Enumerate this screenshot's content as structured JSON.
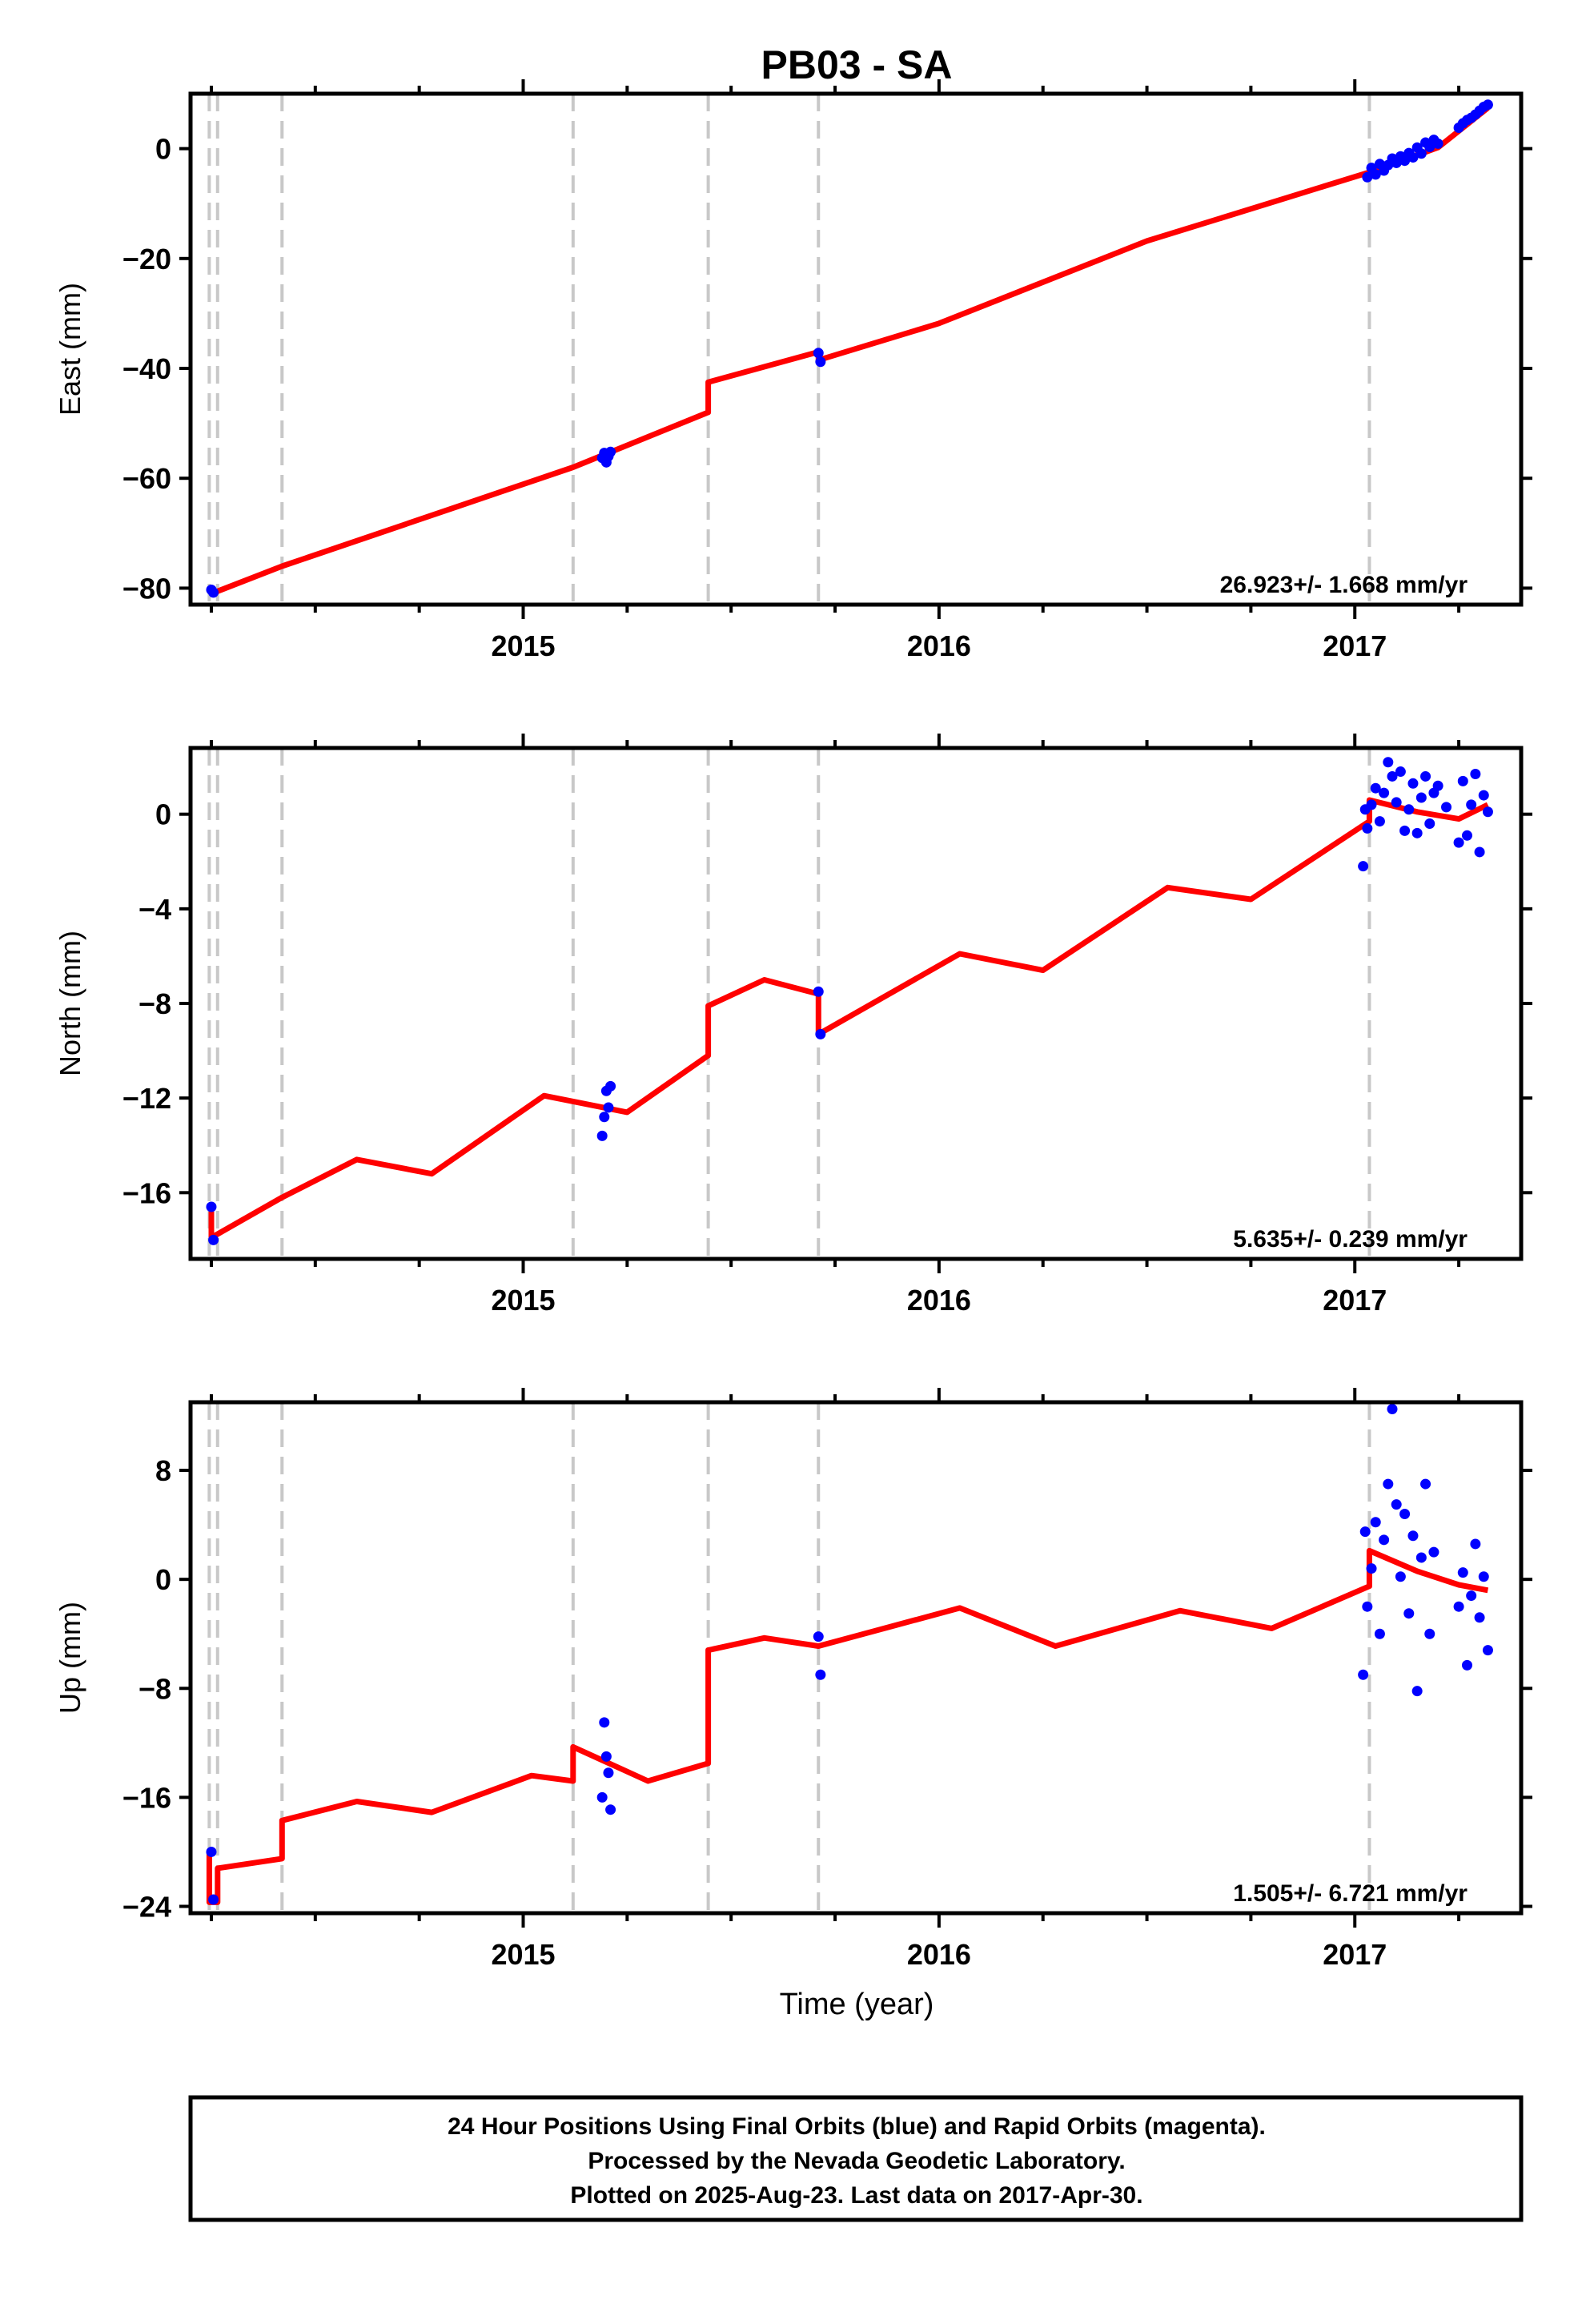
{
  "chart_data": [
    {
      "type": "scatter",
      "title": "PB03 - SA",
      "ylabel": "East (mm)",
      "xlabel": "",
      "ylim": [
        -83,
        10
      ],
      "yticks": [
        0,
        -20,
        -40,
        -60,
        -80
      ],
      "ytick_labels": [
        "0",
        "−20",
        "−40",
        "−60",
        "−80"
      ],
      "xlim": [
        2014.2,
        2017.4
      ],
      "xticks": [
        2015,
        2016,
        2017
      ],
      "xtick_labels": [
        "2015",
        "2016",
        "2017"
      ],
      "rate_label": "26.923+/- 1.668 mm/yr",
      "colors": {
        "points": "#0000ff",
        "model": "#ff0000",
        "break": "#c8c8c8"
      },
      "offsets": [
        2014.245,
        2014.265,
        2014.42,
        2015.12,
        2015.445,
        2015.71,
        2017.035
      ],
      "points": [
        [
          2014.25,
          -80.3
        ],
        [
          2014.255,
          -80.8
        ],
        [
          2015.19,
          -56.3
        ],
        [
          2015.195,
          -55.4
        ],
        [
          2015.2,
          -57.1
        ],
        [
          2015.205,
          -56.0
        ],
        [
          2015.21,
          -55.2
        ],
        [
          2015.71,
          -37.2
        ],
        [
          2015.715,
          -38.8
        ],
        [
          2017.03,
          -5.2
        ],
        [
          2017.04,
          -3.5
        ],
        [
          2017.05,
          -4.7
        ],
        [
          2017.06,
          -2.8
        ],
        [
          2017.07,
          -4.0
        ],
        [
          2017.08,
          -3.0
        ],
        [
          2017.09,
          -1.8
        ],
        [
          2017.1,
          -2.6
        ],
        [
          2017.11,
          -1.4
        ],
        [
          2017.12,
          -2.2
        ],
        [
          2017.13,
          -0.8
        ],
        [
          2017.14,
          -1.6
        ],
        [
          2017.15,
          0.2
        ],
        [
          2017.16,
          -0.9
        ],
        [
          2017.17,
          1.1
        ],
        [
          2017.18,
          0.3
        ],
        [
          2017.19,
          1.6
        ],
        [
          2017.2,
          0.9
        ],
        [
          2017.25,
          3.8
        ],
        [
          2017.26,
          4.6
        ],
        [
          2017.27,
          5.2
        ],
        [
          2017.28,
          5.6
        ],
        [
          2017.29,
          6.2
        ],
        [
          2017.3,
          6.9
        ],
        [
          2017.31,
          7.6
        ],
        [
          2017.32,
          8.0
        ]
      ],
      "model": [
        [
          2014.25,
          -81.0
        ],
        [
          2014.42,
          -76.0
        ],
        [
          2015.12,
          -58.0
        ],
        [
          2015.445,
          -48.0
        ],
        [
          2015.445,
          -42.5
        ],
        [
          2015.71,
          -37.0
        ],
        [
          2015.71,
          -38.5
        ],
        [
          2016.0,
          -31.8
        ],
        [
          2016.5,
          -16.8
        ],
        [
          2017.035,
          -4.3
        ],
        [
          2017.2,
          0.2
        ],
        [
          2017.32,
          7.4
        ]
      ]
    },
    {
      "type": "scatter",
      "title": "",
      "ylabel": "North (mm)",
      "xlabel": "",
      "ylim": [
        -18.8,
        2.8
      ],
      "yticks": [
        0,
        -4,
        -8,
        -12,
        -16
      ],
      "ytick_labels": [
        "0",
        "−4",
        "−8",
        "−12",
        "−16"
      ],
      "xlim": [
        2014.2,
        2017.4
      ],
      "xticks": [
        2015,
        2016,
        2017
      ],
      "xtick_labels": [
        "2015",
        "2016",
        "2017"
      ],
      "rate_label": "5.635+/- 0.239 mm/yr",
      "colors": {
        "points": "#0000ff",
        "model": "#ff0000",
        "break": "#c8c8c8"
      },
      "offsets": [
        2014.245,
        2014.265,
        2014.42,
        2015.12,
        2015.445,
        2015.71,
        2017.035
      ],
      "points": [
        [
          2014.25,
          -16.6
        ],
        [
          2014.255,
          -18.0
        ],
        [
          2015.19,
          -13.6
        ],
        [
          2015.195,
          -12.8
        ],
        [
          2015.2,
          -11.7
        ],
        [
          2015.205,
          -12.4
        ],
        [
          2015.21,
          -11.5
        ],
        [
          2015.71,
          -7.5
        ],
        [
          2015.715,
          -9.3
        ],
        [
          2017.02,
          -2.2
        ],
        [
          2017.025,
          0.2
        ],
        [
          2017.03,
          -0.6
        ],
        [
          2017.04,
          0.4
        ],
        [
          2017.05,
          1.1
        ],
        [
          2017.06,
          -0.3
        ],
        [
          2017.07,
          0.9
        ],
        [
          2017.08,
          2.2
        ],
        [
          2017.09,
          1.6
        ],
        [
          2017.1,
          0.5
        ],
        [
          2017.11,
          1.8
        ],
        [
          2017.12,
          -0.7
        ],
        [
          2017.13,
          0.2
        ],
        [
          2017.14,
          1.3
        ],
        [
          2017.15,
          -0.8
        ],
        [
          2017.16,
          0.7
        ],
        [
          2017.17,
          1.6
        ],
        [
          2017.18,
          -0.4
        ],
        [
          2017.19,
          0.9
        ],
        [
          2017.2,
          1.2
        ],
        [
          2017.22,
          0.3
        ],
        [
          2017.25,
          -1.2
        ],
        [
          2017.26,
          1.4
        ],
        [
          2017.27,
          -0.9
        ],
        [
          2017.28,
          0.4
        ],
        [
          2017.29,
          1.7
        ],
        [
          2017.3,
          -1.6
        ],
        [
          2017.31,
          0.8
        ],
        [
          2017.32,
          0.1
        ]
      ],
      "model": [
        [
          2014.25,
          -16.8
        ],
        [
          2014.25,
          -17.9
        ],
        [
          2014.42,
          -16.2
        ],
        [
          2014.6,
          -14.6
        ],
        [
          2014.78,
          -15.2
        ],
        [
          2015.05,
          -11.9
        ],
        [
          2015.25,
          -12.6
        ],
        [
          2015.445,
          -10.2
        ],
        [
          2015.445,
          -8.1
        ],
        [
          2015.58,
          -7.0
        ],
        [
          2015.71,
          -7.6
        ],
        [
          2015.71,
          -9.3
        ],
        [
          2016.05,
          -5.9
        ],
        [
          2016.25,
          -6.6
        ],
        [
          2016.55,
          -3.1
        ],
        [
          2016.75,
          -3.6
        ],
        [
          2017.035,
          -0.3
        ],
        [
          2017.035,
          0.6
        ],
        [
          2017.15,
          0.1
        ],
        [
          2017.25,
          -0.2
        ],
        [
          2017.32,
          0.4
        ]
      ]
    },
    {
      "type": "scatter",
      "title": "",
      "ylabel": "Up (mm)",
      "xlabel": "Time (year)",
      "ylim": [
        -24.5,
        13
      ],
      "yticks": [
        8,
        0,
        -8,
        -16,
        -24
      ],
      "ytick_labels": [
        "8",
        "0",
        "−8",
        "−16",
        "−24"
      ],
      "xlim": [
        2014.2,
        2017.4
      ],
      "xticks": [
        2015,
        2016,
        2017
      ],
      "xtick_labels": [
        "2015",
        "2016",
        "2017"
      ],
      "rate_label": "1.505+/- 6.721 mm/yr",
      "colors": {
        "points": "#0000ff",
        "model": "#ff0000",
        "break": "#c8c8c8"
      },
      "offsets": [
        2014.245,
        2014.265,
        2014.42,
        2015.12,
        2015.445,
        2015.71,
        2017.035
      ],
      "points": [
        [
          2014.25,
          -20.0
        ],
        [
          2014.255,
          -23.5
        ],
        [
          2015.19,
          -16.0
        ],
        [
          2015.195,
          -10.5
        ],
        [
          2015.2,
          -13.0
        ],
        [
          2015.205,
          -14.2
        ],
        [
          2015.21,
          -16.9
        ],
        [
          2015.71,
          -4.2
        ],
        [
          2015.715,
          -7.0
        ],
        [
          2017.02,
          -7.0
        ],
        [
          2017.025,
          3.5
        ],
        [
          2017.03,
          -2.0
        ],
        [
          2017.04,
          0.8
        ],
        [
          2017.05,
          4.2
        ],
        [
          2017.06,
          -4.0
        ],
        [
          2017.07,
          2.9
        ],
        [
          2017.08,
          7.0
        ],
        [
          2017.09,
          12.5
        ],
        [
          2017.1,
          5.5
        ],
        [
          2017.11,
          0.2
        ],
        [
          2017.12,
          4.8
        ],
        [
          2017.13,
          -2.5
        ],
        [
          2017.14,
          3.2
        ],
        [
          2017.15,
          -8.2
        ],
        [
          2017.16,
          1.6
        ],
        [
          2017.17,
          7.0
        ],
        [
          2017.18,
          -4.0
        ],
        [
          2017.19,
          2.0
        ],
        [
          2017.25,
          -2.0
        ],
        [
          2017.26,
          0.5
        ],
        [
          2017.27,
          -6.3
        ],
        [
          2017.28,
          -1.2
        ],
        [
          2017.29,
          2.6
        ],
        [
          2017.3,
          -2.8
        ],
        [
          2017.31,
          0.2
        ],
        [
          2017.32,
          -5.2
        ]
      ],
      "model": [
        [
          2014.245,
          -20.0
        ],
        [
          2014.245,
          -23.7
        ],
        [
          2014.265,
          -23.7
        ],
        [
          2014.265,
          -21.2
        ],
        [
          2014.42,
          -20.5
        ],
        [
          2014.42,
          -17.7
        ],
        [
          2014.6,
          -16.3
        ],
        [
          2014.78,
          -17.1
        ],
        [
          2015.02,
          -14.4
        ],
        [
          2015.12,
          -14.8
        ],
        [
          2015.12,
          -12.3
        ],
        [
          2015.3,
          -14.8
        ],
        [
          2015.445,
          -13.5
        ],
        [
          2015.445,
          -5.2
        ],
        [
          2015.58,
          -4.3
        ],
        [
          2015.71,
          -4.9
        ],
        [
          2016.05,
          -2.1
        ],
        [
          2016.28,
          -4.9
        ],
        [
          2016.58,
          -2.3
        ],
        [
          2016.8,
          -3.6
        ],
        [
          2017.035,
          -0.5
        ],
        [
          2017.035,
          2.1
        ],
        [
          2017.15,
          0.6
        ],
        [
          2017.25,
          -0.4
        ],
        [
          2017.32,
          -0.8
        ]
      ]
    }
  ],
  "footer": {
    "line1": "24 Hour Positions Using Final Orbits (blue) and Rapid Orbits (magenta).",
    "line2": "Processed by the Nevada Geodetic Laboratory.",
    "line3": "Plotted on 2025-Aug-23. Last data on 2017-Apr-30."
  }
}
